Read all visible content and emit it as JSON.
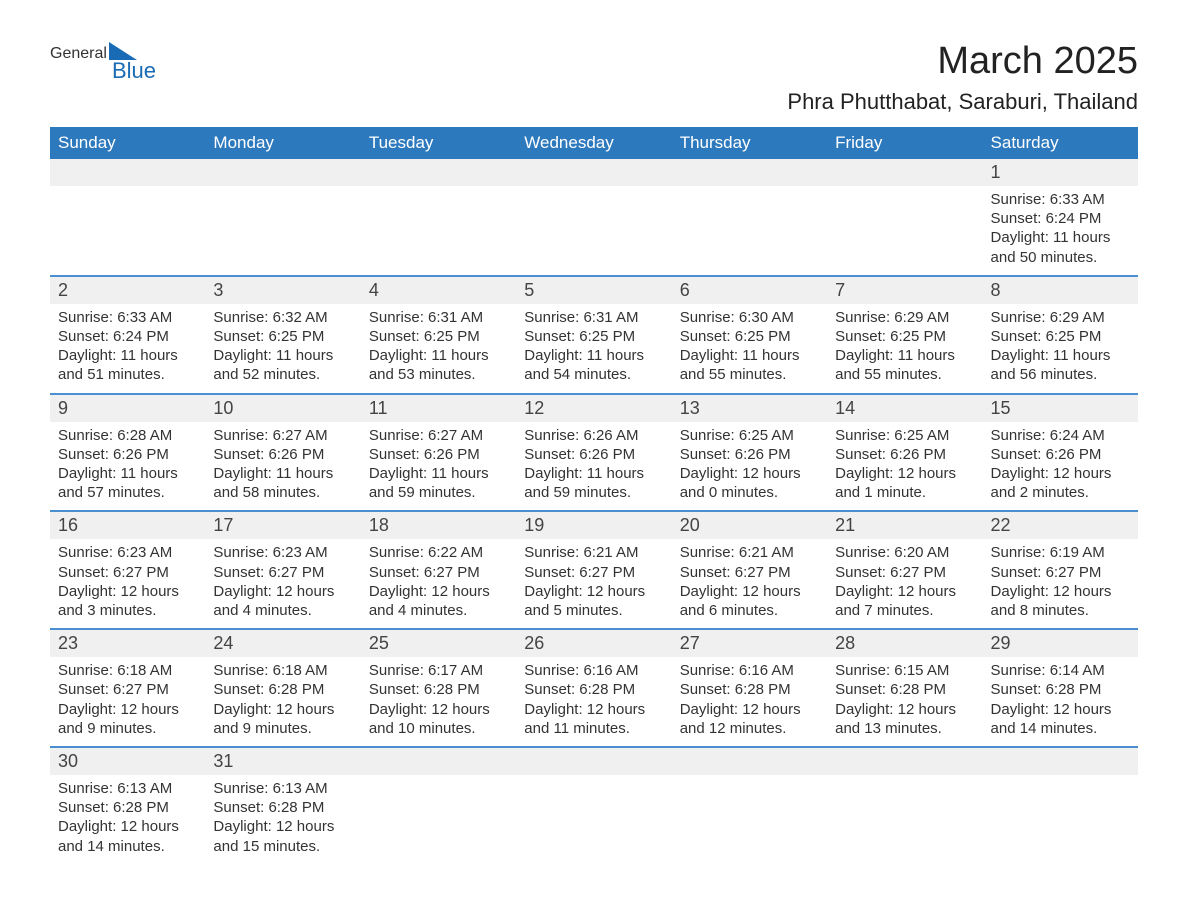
{
  "logo": {
    "text_general": "General",
    "text_blue": "Blue"
  },
  "header": {
    "month_title": "March 2025",
    "location": "Phra Phutthabat, Saraburi, Thailand"
  },
  "style": {
    "header_bg": "#2d79bd",
    "header_fg": "#ffffff",
    "row_divider": "#4a90d0",
    "daynum_bg": "#f0f0f0",
    "body_fg": "#333333",
    "logo_blue": "#1a6bb5",
    "font_family": "Arial",
    "month_title_fontsize": 38,
    "location_fontsize": 22,
    "weekday_fontsize": 17,
    "daynum_fontsize": 18,
    "detail_fontsize": 15
  },
  "weekdays": [
    "Sunday",
    "Monday",
    "Tuesday",
    "Wednesday",
    "Thursday",
    "Friday",
    "Saturday"
  ],
  "weeks": [
    [
      null,
      null,
      null,
      null,
      null,
      null,
      {
        "n": "1",
        "sr": "Sunrise: 6:33 AM",
        "ss": "Sunset: 6:24 PM",
        "d1": "Daylight: 11 hours",
        "d2": "and 50 minutes."
      }
    ],
    [
      {
        "n": "2",
        "sr": "Sunrise: 6:33 AM",
        "ss": "Sunset: 6:24 PM",
        "d1": "Daylight: 11 hours",
        "d2": "and 51 minutes."
      },
      {
        "n": "3",
        "sr": "Sunrise: 6:32 AM",
        "ss": "Sunset: 6:25 PM",
        "d1": "Daylight: 11 hours",
        "d2": "and 52 minutes."
      },
      {
        "n": "4",
        "sr": "Sunrise: 6:31 AM",
        "ss": "Sunset: 6:25 PM",
        "d1": "Daylight: 11 hours",
        "d2": "and 53 minutes."
      },
      {
        "n": "5",
        "sr": "Sunrise: 6:31 AM",
        "ss": "Sunset: 6:25 PM",
        "d1": "Daylight: 11 hours",
        "d2": "and 54 minutes."
      },
      {
        "n": "6",
        "sr": "Sunrise: 6:30 AM",
        "ss": "Sunset: 6:25 PM",
        "d1": "Daylight: 11 hours",
        "d2": "and 55 minutes."
      },
      {
        "n": "7",
        "sr": "Sunrise: 6:29 AM",
        "ss": "Sunset: 6:25 PM",
        "d1": "Daylight: 11 hours",
        "d2": "and 55 minutes."
      },
      {
        "n": "8",
        "sr": "Sunrise: 6:29 AM",
        "ss": "Sunset: 6:25 PM",
        "d1": "Daylight: 11 hours",
        "d2": "and 56 minutes."
      }
    ],
    [
      {
        "n": "9",
        "sr": "Sunrise: 6:28 AM",
        "ss": "Sunset: 6:26 PM",
        "d1": "Daylight: 11 hours",
        "d2": "and 57 minutes."
      },
      {
        "n": "10",
        "sr": "Sunrise: 6:27 AM",
        "ss": "Sunset: 6:26 PM",
        "d1": "Daylight: 11 hours",
        "d2": "and 58 minutes."
      },
      {
        "n": "11",
        "sr": "Sunrise: 6:27 AM",
        "ss": "Sunset: 6:26 PM",
        "d1": "Daylight: 11 hours",
        "d2": "and 59 minutes."
      },
      {
        "n": "12",
        "sr": "Sunrise: 6:26 AM",
        "ss": "Sunset: 6:26 PM",
        "d1": "Daylight: 11 hours",
        "d2": "and 59 minutes."
      },
      {
        "n": "13",
        "sr": "Sunrise: 6:25 AM",
        "ss": "Sunset: 6:26 PM",
        "d1": "Daylight: 12 hours",
        "d2": "and 0 minutes."
      },
      {
        "n": "14",
        "sr": "Sunrise: 6:25 AM",
        "ss": "Sunset: 6:26 PM",
        "d1": "Daylight: 12 hours",
        "d2": "and 1 minute."
      },
      {
        "n": "15",
        "sr": "Sunrise: 6:24 AM",
        "ss": "Sunset: 6:26 PM",
        "d1": "Daylight: 12 hours",
        "d2": "and 2 minutes."
      }
    ],
    [
      {
        "n": "16",
        "sr": "Sunrise: 6:23 AM",
        "ss": "Sunset: 6:27 PM",
        "d1": "Daylight: 12 hours",
        "d2": "and 3 minutes."
      },
      {
        "n": "17",
        "sr": "Sunrise: 6:23 AM",
        "ss": "Sunset: 6:27 PM",
        "d1": "Daylight: 12 hours",
        "d2": "and 4 minutes."
      },
      {
        "n": "18",
        "sr": "Sunrise: 6:22 AM",
        "ss": "Sunset: 6:27 PM",
        "d1": "Daylight: 12 hours",
        "d2": "and 4 minutes."
      },
      {
        "n": "19",
        "sr": "Sunrise: 6:21 AM",
        "ss": "Sunset: 6:27 PM",
        "d1": "Daylight: 12 hours",
        "d2": "and 5 minutes."
      },
      {
        "n": "20",
        "sr": "Sunrise: 6:21 AM",
        "ss": "Sunset: 6:27 PM",
        "d1": "Daylight: 12 hours",
        "d2": "and 6 minutes."
      },
      {
        "n": "21",
        "sr": "Sunrise: 6:20 AM",
        "ss": "Sunset: 6:27 PM",
        "d1": "Daylight: 12 hours",
        "d2": "and 7 minutes."
      },
      {
        "n": "22",
        "sr": "Sunrise: 6:19 AM",
        "ss": "Sunset: 6:27 PM",
        "d1": "Daylight: 12 hours",
        "d2": "and 8 minutes."
      }
    ],
    [
      {
        "n": "23",
        "sr": "Sunrise: 6:18 AM",
        "ss": "Sunset: 6:27 PM",
        "d1": "Daylight: 12 hours",
        "d2": "and 9 minutes."
      },
      {
        "n": "24",
        "sr": "Sunrise: 6:18 AM",
        "ss": "Sunset: 6:28 PM",
        "d1": "Daylight: 12 hours",
        "d2": "and 9 minutes."
      },
      {
        "n": "25",
        "sr": "Sunrise: 6:17 AM",
        "ss": "Sunset: 6:28 PM",
        "d1": "Daylight: 12 hours",
        "d2": "and 10 minutes."
      },
      {
        "n": "26",
        "sr": "Sunrise: 6:16 AM",
        "ss": "Sunset: 6:28 PM",
        "d1": "Daylight: 12 hours",
        "d2": "and 11 minutes."
      },
      {
        "n": "27",
        "sr": "Sunrise: 6:16 AM",
        "ss": "Sunset: 6:28 PM",
        "d1": "Daylight: 12 hours",
        "d2": "and 12 minutes."
      },
      {
        "n": "28",
        "sr": "Sunrise: 6:15 AM",
        "ss": "Sunset: 6:28 PM",
        "d1": "Daylight: 12 hours",
        "d2": "and 13 minutes."
      },
      {
        "n": "29",
        "sr": "Sunrise: 6:14 AM",
        "ss": "Sunset: 6:28 PM",
        "d1": "Daylight: 12 hours",
        "d2": "and 14 minutes."
      }
    ],
    [
      {
        "n": "30",
        "sr": "Sunrise: 6:13 AM",
        "ss": "Sunset: 6:28 PM",
        "d1": "Daylight: 12 hours",
        "d2": "and 14 minutes."
      },
      {
        "n": "31",
        "sr": "Sunrise: 6:13 AM",
        "ss": "Sunset: 6:28 PM",
        "d1": "Daylight: 12 hours",
        "d2": "and 15 minutes."
      },
      null,
      null,
      null,
      null,
      null
    ]
  ]
}
